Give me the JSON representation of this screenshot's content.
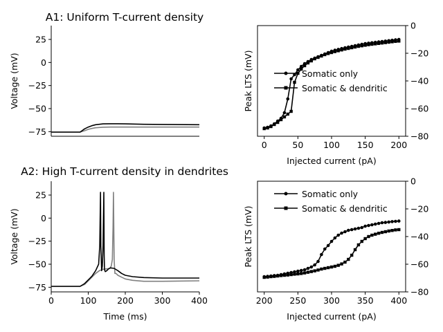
{
  "colors": {
    "black": "#000000",
    "gray": "#808080",
    "background": "#ffffff"
  },
  "chart_data": [
    {
      "id": "A1-voltage",
      "type": "line",
      "title": "A1: Uniform T-current density",
      "xlabel": "",
      "ylabel": "Voltage (mV)",
      "xlim": [
        0,
        400
      ],
      "ylim": [
        -80,
        40
      ],
      "yticks": [
        25,
        0,
        -25,
        -50,
        -75
      ],
      "ytick_labels": [
        "25",
        "0",
        "−25",
        "−50",
        "−75"
      ],
      "xticks": [],
      "spines": "left-bottom",
      "series": [
        {
          "color": "#808080",
          "x": [
            0,
            78,
            90,
            100,
            110,
            120,
            140,
            160,
            200,
            250,
            300,
            400
          ],
          "y": [
            -75.5,
            -75.5,
            -74,
            -72.5,
            -71.5,
            -70.8,
            -70.2,
            -70,
            -70,
            -70,
            -70,
            -70
          ]
        },
        {
          "color": "#000000",
          "x": [
            0,
            78,
            90,
            100,
            110,
            120,
            140,
            160,
            180,
            200,
            250,
            300,
            400
          ],
          "y": [
            -75.5,
            -75.5,
            -72,
            -70,
            -68.5,
            -67.5,
            -66.6,
            -66.4,
            -66.4,
            -66.6,
            -67,
            -67.2,
            -67.5
          ]
        }
      ]
    },
    {
      "id": "A1-peak",
      "type": "line",
      "title": "",
      "xlabel": "Injected current (pA)",
      "ylabel": "Peak LTS (mV)",
      "xlim": [
        -10,
        210
      ],
      "ylim": [
        -80,
        0
      ],
      "xticks": [
        0,
        50,
        100,
        150,
        200
      ],
      "xtick_labels": [
        "0",
        "50",
        "100",
        "150",
        "200"
      ],
      "yticks": [
        0,
        -20,
        -40,
        -60,
        -80
      ],
      "ytick_labels": [
        "0",
        "−20",
        "−40",
        "−60",
        "−80"
      ],
      "y_axis_side": "right",
      "legend_placement": "center-left",
      "series": [
        {
          "name": "Somatic only",
          "marker": "circle",
          "color": "#000000",
          "x": [
            0,
            5,
            10,
            15,
            20,
            25,
            30,
            35,
            40,
            45,
            50,
            55,
            60,
            65,
            70,
            75,
            80,
            85,
            90,
            95,
            100,
            105,
            110,
            115,
            120,
            125,
            130,
            135,
            140,
            145,
            150,
            155,
            160,
            165,
            170,
            175,
            180,
            185,
            190,
            195,
            200
          ],
          "y": [
            -74,
            -73.5,
            -72.5,
            -71,
            -69,
            -67,
            -63,
            -53,
            -38.5,
            -35.5,
            -32,
            -29.5,
            -27.5,
            -26,
            -24.5,
            -23.5,
            -22.5,
            -21.5,
            -20.5,
            -19.5,
            -18.5,
            -17.8,
            -17.2,
            -16.6,
            -16,
            -15.5,
            -15,
            -14.5,
            -14,
            -13.5,
            -13,
            -12.7,
            -12.4,
            -12.1,
            -11.8,
            -11.5,
            -11.2,
            -10.9,
            -10.6,
            -10.3,
            -10
          ]
        },
        {
          "name": "Somatic & dendritic",
          "marker": "square",
          "color": "#000000",
          "x": [
            0,
            5,
            10,
            15,
            20,
            25,
            30,
            35,
            40,
            45,
            50,
            55,
            60,
            65,
            70,
            75,
            80,
            85,
            90,
            95,
            100,
            105,
            110,
            115,
            120,
            125,
            130,
            135,
            140,
            145,
            150,
            155,
            160,
            165,
            170,
            175,
            180,
            185,
            190,
            195,
            200
          ],
          "y": [
            -74.5,
            -74,
            -73,
            -71.5,
            -70,
            -68,
            -66,
            -64,
            -62,
            -41,
            -34.5,
            -31.5,
            -29,
            -27,
            -25.5,
            -24,
            -23,
            -22,
            -21,
            -20.2,
            -19.5,
            -18.8,
            -18.2,
            -17.6,
            -17,
            -16.5,
            -16,
            -15.5,
            -15,
            -14.6,
            -14.2,
            -13.8,
            -13.5,
            -13.2,
            -12.9,
            -12.6,
            -12.3,
            -12,
            -11.7,
            -11.4,
            -11.2
          ]
        }
      ]
    },
    {
      "id": "A2-voltage",
      "type": "line",
      "title": "A2: High T-current density in dendrites",
      "xlabel": "Time (ms)",
      "ylabel": "Voltage (mV)",
      "xlim": [
        0,
        400
      ],
      "ylim": [
        -80,
        40
      ],
      "xticks": [
        0,
        100,
        200,
        300,
        400
      ],
      "xtick_labels": [
        "0",
        "100",
        "200",
        "300",
        "400"
      ],
      "yticks": [
        25,
        0,
        -25,
        -50,
        -75
      ],
      "ytick_labels": [
        "25",
        "0",
        "−25",
        "−50",
        "−75"
      ],
      "spines": "left-bottom",
      "series": [
        {
          "color": "#808080",
          "x": [
            0,
            78,
            90,
            100,
            110,
            120,
            130,
            140,
            150,
            158,
            162,
            165,
            167,
            168,
            170,
            172,
            175,
            180,
            190,
            200,
            220,
            250,
            300,
            400
          ],
          "y": [
            -74,
            -74,
            -72,
            -68,
            -64,
            -60,
            -57,
            -55.5,
            -55,
            -54.5,
            -52,
            -45,
            -10,
            28,
            -45,
            -60,
            -60,
            -62,
            -64,
            -66,
            -67.5,
            -68.5,
            -68.5,
            -68
          ]
        },
        {
          "color": "#000000",
          "x": [
            0,
            78,
            90,
            100,
            110,
            120,
            128,
            131,
            133,
            134,
            136,
            138,
            140,
            142,
            143,
            144,
            146,
            150,
            155,
            160,
            170,
            180,
            190,
            200,
            220,
            250,
            300,
            400
          ],
          "y": [
            -74,
            -74,
            -71,
            -67,
            -63,
            -57,
            -50,
            -30,
            28,
            -30,
            -57,
            -52,
            -30,
            28,
            -40,
            -56,
            -58,
            -57,
            -55,
            -54,
            -54.5,
            -57,
            -60,
            -62,
            -63.5,
            -64.5,
            -65,
            -65
          ]
        }
      ]
    },
    {
      "id": "A2-peak",
      "type": "line",
      "title": "",
      "xlabel": "Injected current (pA)",
      "ylabel": "Peak LTS (mV)",
      "xlim": [
        190,
        410
      ],
      "ylim": [
        -80,
        0
      ],
      "xticks": [
        200,
        250,
        300,
        350,
        400
      ],
      "xtick_labels": [
        "200",
        "250",
        "300",
        "350",
        "400"
      ],
      "yticks": [
        0,
        -20,
        -40,
        -60,
        -80
      ],
      "ytick_labels": [
        "0",
        "−20",
        "−40",
        "−60",
        "−80"
      ],
      "y_axis_side": "right",
      "legend_placement": "top-left",
      "series": [
        {
          "name": "Somatic only",
          "marker": "circle",
          "color": "#000000",
          "x": [
            200,
            205,
            210,
            215,
            220,
            225,
            230,
            235,
            240,
            245,
            250,
            255,
            260,
            265,
            270,
            275,
            280,
            285,
            290,
            295,
            300,
            305,
            310,
            315,
            320,
            325,
            330,
            335,
            340,
            345,
            350,
            355,
            360,
            365,
            370,
            375,
            380,
            385,
            390,
            395,
            400
          ],
          "y": [
            -69,
            -68.8,
            -68.5,
            -68.2,
            -68,
            -67.5,
            -67,
            -66.5,
            -66,
            -65.5,
            -65,
            -64.5,
            -64,
            -63,
            -62,
            -60.5,
            -58,
            -53,
            -49,
            -46.5,
            -43.5,
            -41,
            -39,
            -37.5,
            -36.5,
            -35.5,
            -35,
            -34.5,
            -34,
            -33.5,
            -32.5,
            -32,
            -31.5,
            -31,
            -30.5,
            -30,
            -29.8,
            -29.5,
            -29.2,
            -29,
            -28.8
          ]
        },
        {
          "name": "Somatic & dendritic",
          "marker": "square",
          "color": "#000000",
          "x": [
            200,
            205,
            210,
            215,
            220,
            225,
            230,
            235,
            240,
            245,
            250,
            255,
            260,
            265,
            270,
            275,
            280,
            285,
            290,
            295,
            300,
            305,
            310,
            315,
            320,
            325,
            330,
            335,
            340,
            345,
            350,
            355,
            360,
            365,
            370,
            375,
            380,
            385,
            390,
            395,
            400
          ],
          "y": [
            -69.5,
            -69.3,
            -69,
            -68.8,
            -68.5,
            -68.2,
            -68,
            -67.8,
            -67.5,
            -67.2,
            -67,
            -66.7,
            -66.3,
            -65.8,
            -65.3,
            -64.8,
            -64.2,
            -63.5,
            -63,
            -62.5,
            -62,
            -61.5,
            -60.8,
            -59.8,
            -58.5,
            -56.5,
            -53.5,
            -49.5,
            -46,
            -43.5,
            -41.5,
            -40,
            -39,
            -38.3,
            -37.6,
            -37,
            -36.5,
            -36,
            -35.6,
            -35.2,
            -35
          ]
        }
      ]
    }
  ]
}
